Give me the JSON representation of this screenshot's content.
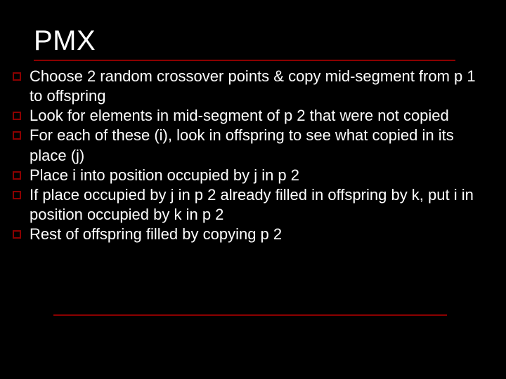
{
  "slide": {
    "title": "PMX",
    "background_color": "#000000",
    "text_color": "#ffffff",
    "accent_color": "#8b0000",
    "title_fontsize": 40,
    "body_fontsize": 22,
    "font_family": "Verdana, Geneva, sans-serif",
    "bullet_box": {
      "size": 12,
      "border_width": 2,
      "border_color": "#8b0000"
    },
    "underline": {
      "height": 2,
      "color": "#8b0000",
      "title_width": 600,
      "bottom_width": 560
    },
    "bullets": [
      "Choose 2 random crossover points & copy mid-segment from p 1 to offspring",
      "Look for elements in mid-segment of p 2 that were not copied",
      "For each of these (i), look in offspring to see what copied in its place (j)",
      "Place i into position occupied by j in p 2",
      "If place occupied by j in p 2 already filled in offspring by k, put i in position occupied by k in p 2",
      "Rest of offspring filled by copying p 2"
    ]
  }
}
